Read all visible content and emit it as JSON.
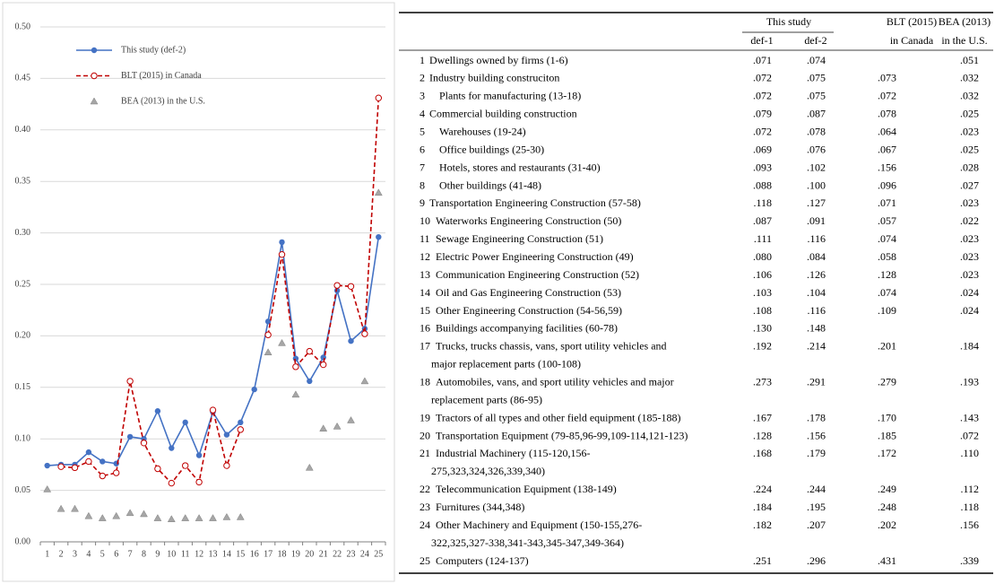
{
  "chart_data": {
    "type": "line",
    "categories": [
      "1",
      "2",
      "3",
      "4",
      "5",
      "6",
      "7",
      "8",
      "9",
      "10",
      "11",
      "12",
      "13",
      "14",
      "15",
      "16",
      "17",
      "18",
      "19",
      "20",
      "21",
      "22",
      "23",
      "24",
      "25"
    ],
    "series": [
      {
        "name": "This study (def-2)",
        "color": "#4472c4",
        "style": "solid",
        "marker": "circle",
        "values": [
          0.074,
          0.075,
          0.075,
          0.087,
          0.078,
          0.076,
          0.102,
          0.1,
          0.127,
          0.091,
          0.116,
          0.084,
          0.126,
          0.104,
          0.116,
          0.148,
          0.214,
          0.291,
          0.178,
          0.156,
          0.179,
          0.244,
          0.195,
          0.207,
          0.296
        ]
      },
      {
        "name": "BLT (2015) in Canada",
        "color": "#c00000",
        "style": "dashed",
        "marker": "open-circle",
        "values": [
          null,
          0.073,
          0.072,
          0.078,
          0.064,
          0.067,
          0.156,
          0.096,
          0.071,
          0.057,
          0.074,
          0.058,
          0.128,
          0.074,
          0.109,
          null,
          0.201,
          0.279,
          0.17,
          0.185,
          0.172,
          0.249,
          0.248,
          0.202,
          0.431
        ]
      },
      {
        "name": "BEA (2013) in the U.S.",
        "color": "#a6a6a6",
        "style": "none",
        "marker": "triangle",
        "values": [
          0.051,
          0.032,
          0.032,
          0.025,
          0.023,
          0.025,
          0.028,
          0.027,
          0.023,
          0.022,
          0.023,
          0.023,
          0.023,
          0.024,
          0.024,
          null,
          0.184,
          0.193,
          0.143,
          0.072,
          0.11,
          0.112,
          0.118,
          0.156,
          0.339
        ]
      }
    ],
    "ylim": [
      0,
      0.5
    ],
    "yticks": [
      {
        "value": 0,
        "label": "0.00"
      },
      {
        "value": 0.05,
        "label": "0.05"
      },
      {
        "value": 0.1,
        "label": "0.10"
      },
      {
        "value": 0.15,
        "label": "0.15"
      },
      {
        "value": 0.2,
        "label": "0.20"
      },
      {
        "value": 0.25,
        "label": "0.25"
      },
      {
        "value": 0.3,
        "label": "0.30"
      },
      {
        "value": 0.35,
        "label": "0.35"
      },
      {
        "value": 0.4,
        "label": "0.40"
      },
      {
        "value": 0.45,
        "label": "0.45"
      },
      {
        "value": 0.5,
        "label": "0.50"
      }
    ],
    "grid": true,
    "legend": "top-left"
  },
  "table": {
    "header": {
      "group": "This study",
      "columns": [
        [
          "def-1"
        ],
        [
          "def-2"
        ],
        [
          "BLT (2015)",
          "in Canada"
        ],
        [
          "BEA (2013)",
          "in the U.S."
        ]
      ]
    },
    "rows": [
      {
        "number": "1",
        "label": [
          "Dwellings owned by firms (1-6)"
        ],
        "cells": [
          ".071",
          ".074",
          null,
          ".051"
        ]
      },
      {
        "number": "2",
        "label": [
          "Industry building construciton"
        ],
        "cells": [
          ".072",
          ".075",
          ".073",
          ".032"
        ]
      },
      {
        "number": "3",
        "label": [
          "Plants for manufacturing (13-18)"
        ],
        "cells": [
          ".072",
          ".075",
          ".072",
          ".032"
        ]
      },
      {
        "number": "4",
        "label": [
          "Commercial building construction"
        ],
        "cells": [
          ".079",
          ".087",
          ".078",
          ".025"
        ]
      },
      {
        "number": "5",
        "label": [
          "Warehouses (19-24)"
        ],
        "cells": [
          ".072",
          ".078",
          ".064",
          ".023"
        ]
      },
      {
        "number": "6",
        "label": [
          "Office buildings (25-30)"
        ],
        "cells": [
          ".069",
          ".076",
          ".067",
          ".025"
        ]
      },
      {
        "number": "7",
        "label": [
          "Hotels, stores and restaurants (31-40)"
        ],
        "cells": [
          ".093",
          ".102",
          ".156",
          ".028"
        ]
      },
      {
        "number": "8",
        "label": [
          "Other buildings (41-48)"
        ],
        "cells": [
          ".088",
          ".100",
          ".096",
          ".027"
        ]
      },
      {
        "number": "9",
        "label": [
          "Transportation Engineering Construction (57-58)"
        ],
        "cells": [
          ".118",
          ".127",
          ".071",
          ".023"
        ]
      },
      {
        "number": "10",
        "label": [
          "Waterworks Engineering Construction (50)"
        ],
        "cells": [
          ".087",
          ".091",
          ".057",
          ".022"
        ]
      },
      {
        "number": "11",
        "label": [
          "Sewage Engineering Construction (51)"
        ],
        "cells": [
          ".111",
          ".116",
          ".074",
          ".023"
        ]
      },
      {
        "number": "12",
        "label": [
          "Electric Power Engineering Construction (49)"
        ],
        "cells": [
          ".080",
          ".084",
          ".058",
          ".023"
        ]
      },
      {
        "number": "13",
        "label": [
          "Communication Engineering Construction (52)"
        ],
        "cells": [
          ".106",
          ".126",
          ".128",
          ".023"
        ]
      },
      {
        "number": "14",
        "label": [
          "Oil and Gas Engineering Construction (53)"
        ],
        "cells": [
          ".103",
          ".104",
          ".074",
          ".024"
        ]
      },
      {
        "number": "15",
        "label": [
          "Other Engineering Construction (54-56,59)"
        ],
        "cells": [
          ".108",
          ".116",
          ".109",
          ".024"
        ]
      },
      {
        "number": "16",
        "label": [
          "Buildings accompanying facilities (60-78)"
        ],
        "cells": [
          ".130",
          ".148",
          null,
          null
        ]
      },
      {
        "number": "17",
        "label": [
          "Trucks, trucks chassis, vans, sport utility vehicles and",
          "major replacement parts (100-108)"
        ],
        "cells": [
          ".192",
          ".214",
          ".201",
          ".184"
        ]
      },
      {
        "number": "18",
        "label": [
          "Automobiles, vans, and sport utility vehicles and major",
          "replacement parts (86-95)"
        ],
        "cells": [
          ".273",
          ".291",
          ".279",
          ".193"
        ]
      },
      {
        "number": "19",
        "label": [
          "Tractors of all types and other field equipment (185-188)"
        ],
        "cells": [
          ".167",
          ".178",
          ".170",
          ".143"
        ]
      },
      {
        "number": "20",
        "label": [
          "Transportation Equipment (79-85,96-99,109-114,121-123)"
        ],
        "cells": [
          ".128",
          ".156",
          ".185",
          ".072"
        ]
      },
      {
        "number": "21",
        "label": [
          "Industrial Machinery (115-120,156-",
          "275,323,324,326,339,340)"
        ],
        "cells": [
          ".168",
          ".179",
          ".172",
          ".110"
        ]
      },
      {
        "number": "22",
        "label": [
          "Telecommunication Equipment  (138-149)"
        ],
        "cells": [
          ".224",
          ".244",
          ".249",
          ".112"
        ]
      },
      {
        "number": "23",
        "label": [
          "Furnitures (344,348)"
        ],
        "cells": [
          ".184",
          ".195",
          ".248",
          ".118"
        ]
      },
      {
        "number": "24",
        "label": [
          "Other Machinery and Equipment (150-155,276-",
          "322,325,327-338,341-343,345-347,349-364)"
        ],
        "cells": [
          ".182",
          ".207",
          ".202",
          ".156"
        ]
      },
      {
        "number": "25",
        "label": [
          "Computers  (124-137)"
        ],
        "cells": [
          ".251",
          ".296",
          ".431",
          ".339"
        ]
      }
    ]
  }
}
